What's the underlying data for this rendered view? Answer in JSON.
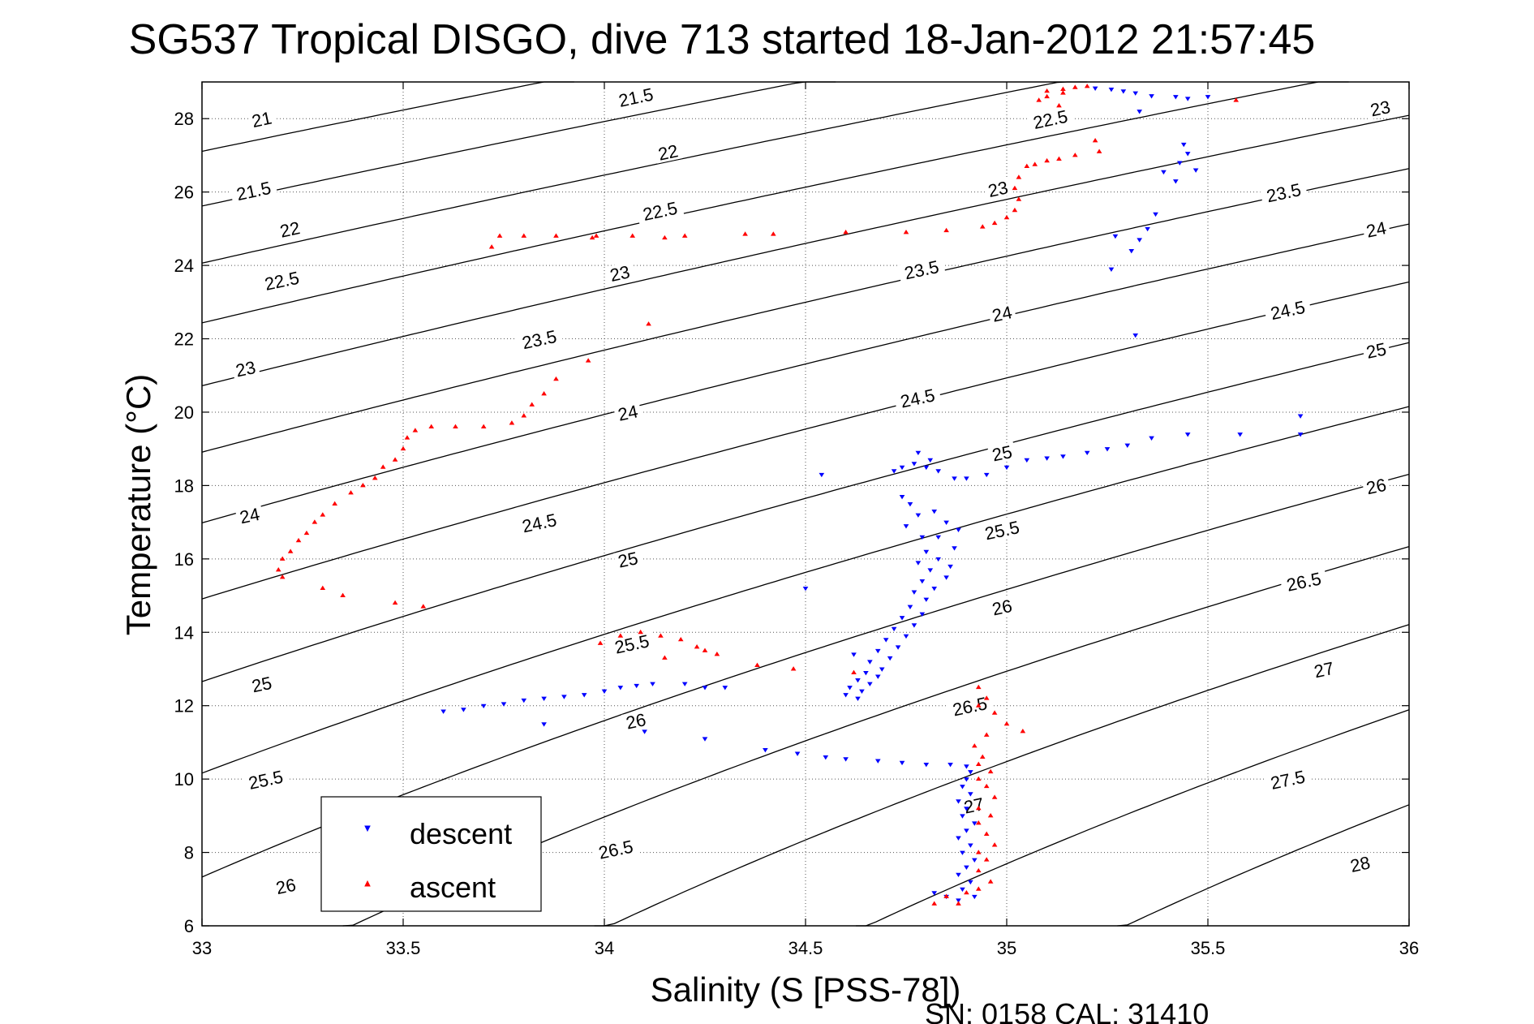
{
  "chart_data": {
    "type": "scatter",
    "title": "SG537 Tropical DISGO, dive 713 started 18-Jan-2012 21:57:45",
    "xlabel": "Salinity (S [PSS-78])",
    "ylabel": "Temperature (°C)",
    "xlim": [
      33,
      36
    ],
    "ylim": [
      6,
      29
    ],
    "xticks": [
      33,
      33.5,
      34,
      34.5,
      35,
      35.5,
      36
    ],
    "xtick_labels": [
      "33",
      "33.5",
      "34",
      "34.5",
      "35",
      "35.5",
      "36"
    ],
    "yticks": [
      6,
      8,
      10,
      12,
      14,
      16,
      18,
      20,
      22,
      24,
      26,
      28
    ],
    "ytick_labels": [
      "6",
      "8",
      "10",
      "12",
      "14",
      "16",
      "18",
      "20",
      "22",
      "24",
      "26",
      "28"
    ],
    "grid": true,
    "legend_position": "bottom-left",
    "footer": "SN: 0158  CAL: 31410",
    "contours": {
      "levels": [
        21,
        21.5,
        22,
        22.5,
        23,
        23.5,
        24,
        24.5,
        25,
        25.5,
        26,
        26.5,
        27,
        27.5,
        28
      ],
      "labels": [
        {
          "text": "21",
          "s": 33.15,
          "t": 27.9
        },
        {
          "text": "21.5",
          "s": 34.08,
          "t": 28.5
        },
        {
          "text": "21.5",
          "s": 33.13,
          "t": 25.95
        },
        {
          "text": "22",
          "s": 34.16,
          "t": 27.0
        },
        {
          "text": "22.5",
          "s": 35.11,
          "t": 27.9
        },
        {
          "text": "22",
          "s": 33.22,
          "t": 24.9
        },
        {
          "text": "22.5",
          "s": 34.14,
          "t": 25.4
        },
        {
          "text": "23",
          "s": 34.98,
          "t": 26.0
        },
        {
          "text": "23",
          "s": 35.93,
          "t": 28.2
        },
        {
          "text": "22.5",
          "s": 33.2,
          "t": 23.5
        },
        {
          "text": "23",
          "s": 34.04,
          "t": 23.7
        },
        {
          "text": "23.5",
          "s": 34.79,
          "t": 23.8
        },
        {
          "text": "23.5",
          "s": 35.69,
          "t": 25.9
        },
        {
          "text": "23",
          "s": 33.11,
          "t": 21.1
        },
        {
          "text": "23.5",
          "s": 33.84,
          "t": 21.9
        },
        {
          "text": "24",
          "s": 34.99,
          "t": 22.6
        },
        {
          "text": "24",
          "s": 35.92,
          "t": 24.9
        },
        {
          "text": "24",
          "s": 34.06,
          "t": 19.9
        },
        {
          "text": "24.5",
          "s": 35.7,
          "t": 22.7
        },
        {
          "text": "25",
          "s": 35.92,
          "t": 21.6
        },
        {
          "text": "24",
          "s": 33.12,
          "t": 17.1
        },
        {
          "text": "24.5",
          "s": 34.78,
          "t": 20.3
        },
        {
          "text": "25",
          "s": 34.99,
          "t": 18.8
        },
        {
          "text": "24.5",
          "s": 33.84,
          "t": 16.9
        },
        {
          "text": "25.5",
          "s": 34.99,
          "t": 16.7
        },
        {
          "text": "26",
          "s": 35.92,
          "t": 17.9
        },
        {
          "text": "25",
          "s": 34.06,
          "t": 15.9
        },
        {
          "text": "26",
          "s": 34.99,
          "t": 14.6
        },
        {
          "text": "26.5",
          "s": 35.74,
          "t": 15.3
        },
        {
          "text": "25.5",
          "s": 34.07,
          "t": 13.6
        },
        {
          "text": "26.5",
          "s": 34.91,
          "t": 11.9
        },
        {
          "text": "27",
          "s": 35.79,
          "t": 12.9
        },
        {
          "text": "25",
          "s": 33.15,
          "t": 12.5
        },
        {
          "text": "26",
          "s": 34.08,
          "t": 11.5
        },
        {
          "text": "27",
          "s": 34.92,
          "t": 9.2
        },
        {
          "text": "27.5",
          "s": 35.7,
          "t": 9.9
        },
        {
          "text": "25.5",
          "s": 33.16,
          "t": 9.9
        },
        {
          "text": "26.5",
          "s": 34.03,
          "t": 8.0
        },
        {
          "text": "28",
          "s": 35.88,
          "t": 7.6
        },
        {
          "text": "26",
          "s": 33.21,
          "t": 7.0
        }
      ]
    },
    "series": [
      {
        "name": "descent",
        "color": "#0000ff",
        "marker": "triangle-down",
        "points": [
          [
            35.22,
            28.83
          ],
          [
            35.26,
            28.8
          ],
          [
            35.29,
            28.75
          ],
          [
            35.32,
            28.7
          ],
          [
            35.36,
            28.62
          ],
          [
            35.42,
            28.6
          ],
          [
            35.45,
            28.55
          ],
          [
            35.5,
            28.6
          ],
          [
            35.33,
            28.2
          ],
          [
            35.44,
            27.3
          ],
          [
            35.45,
            27.05
          ],
          [
            35.43,
            26.8
          ],
          [
            35.47,
            26.6
          ],
          [
            35.39,
            26.55
          ],
          [
            35.42,
            26.3
          ],
          [
            35.37,
            25.4
          ],
          [
            35.35,
            25.0
          ],
          [
            35.33,
            24.7
          ],
          [
            35.27,
            24.8
          ],
          [
            35.31,
            24.4
          ],
          [
            35.26,
            23.9
          ],
          [
            35.32,
            22.1
          ],
          [
            35.73,
            19.9
          ],
          [
            35.73,
            19.4
          ],
          [
            35.58,
            19.4
          ],
          [
            35.45,
            19.4
          ],
          [
            35.36,
            19.3
          ],
          [
            35.3,
            19.1
          ],
          [
            35.25,
            19.0
          ],
          [
            35.2,
            18.9
          ],
          [
            35.14,
            18.8
          ],
          [
            35.1,
            18.75
          ],
          [
            35.05,
            18.7
          ],
          [
            35.0,
            18.5
          ],
          [
            34.95,
            18.3
          ],
          [
            34.9,
            18.2
          ],
          [
            34.87,
            18.2
          ],
          [
            34.83,
            18.4
          ],
          [
            34.8,
            18.5
          ],
          [
            34.77,
            18.6
          ],
          [
            34.74,
            18.5
          ],
          [
            34.72,
            18.4
          ],
          [
            34.78,
            18.9
          ],
          [
            34.81,
            18.7
          ],
          [
            34.54,
            18.3
          ],
          [
            34.74,
            17.7
          ],
          [
            34.76,
            17.5
          ],
          [
            34.78,
            17.2
          ],
          [
            34.82,
            17.3
          ],
          [
            34.85,
            17.0
          ],
          [
            34.88,
            16.8
          ],
          [
            34.75,
            16.9
          ],
          [
            34.79,
            16.6
          ],
          [
            34.83,
            16.6
          ],
          [
            34.87,
            16.3
          ],
          [
            34.8,
            16.2
          ],
          [
            34.83,
            16.0
          ],
          [
            34.86,
            15.8
          ],
          [
            34.78,
            15.9
          ],
          [
            34.81,
            15.7
          ],
          [
            34.85,
            15.5
          ],
          [
            34.79,
            15.4
          ],
          [
            34.82,
            15.2
          ],
          [
            34.77,
            15.1
          ],
          [
            34.8,
            14.9
          ],
          [
            34.76,
            14.7
          ],
          [
            34.79,
            14.5
          ],
          [
            34.74,
            14.4
          ],
          [
            34.77,
            14.2
          ],
          [
            34.72,
            14.1
          ],
          [
            34.75,
            13.9
          ],
          [
            34.7,
            13.8
          ],
          [
            34.73,
            13.6
          ],
          [
            34.68,
            13.5
          ],
          [
            34.71,
            13.3
          ],
          [
            34.66,
            13.2
          ],
          [
            34.69,
            13.0
          ],
          [
            34.65,
            12.9
          ],
          [
            34.68,
            12.8
          ],
          [
            34.63,
            12.7
          ],
          [
            34.66,
            12.6
          ],
          [
            34.61,
            12.5
          ],
          [
            34.64,
            12.4
          ],
          [
            34.6,
            12.3
          ],
          [
            34.63,
            12.2
          ],
          [
            34.5,
            15.2
          ],
          [
            34.62,
            13.4
          ],
          [
            34.12,
            12.6
          ],
          [
            34.08,
            12.55
          ],
          [
            34.04,
            12.5
          ],
          [
            34.0,
            12.4
          ],
          [
            33.95,
            12.3
          ],
          [
            33.9,
            12.25
          ],
          [
            33.85,
            12.2
          ],
          [
            33.8,
            12.15
          ],
          [
            33.75,
            12.05
          ],
          [
            33.7,
            12.0
          ],
          [
            33.65,
            11.9
          ],
          [
            33.6,
            11.85
          ],
          [
            34.2,
            12.6
          ],
          [
            34.25,
            12.5
          ],
          [
            34.3,
            12.5
          ],
          [
            34.1,
            11.3
          ],
          [
            33.85,
            11.5
          ],
          [
            34.25,
            11.1
          ],
          [
            34.4,
            10.8
          ],
          [
            34.48,
            10.7
          ],
          [
            34.55,
            10.6
          ],
          [
            34.6,
            10.55
          ],
          [
            34.68,
            10.5
          ],
          [
            34.74,
            10.45
          ],
          [
            34.8,
            10.4
          ],
          [
            34.86,
            10.4
          ],
          [
            34.9,
            10.35
          ],
          [
            34.91,
            10.2
          ],
          [
            34.9,
            10.0
          ],
          [
            34.89,
            9.8
          ],
          [
            34.91,
            9.6
          ],
          [
            34.88,
            9.4
          ],
          [
            34.9,
            9.2
          ],
          [
            34.89,
            9.0
          ],
          [
            34.92,
            8.8
          ],
          [
            34.9,
            8.6
          ],
          [
            34.88,
            8.4
          ],
          [
            34.91,
            8.2
          ],
          [
            34.89,
            8.0
          ],
          [
            34.92,
            7.8
          ],
          [
            34.9,
            7.6
          ],
          [
            34.88,
            7.4
          ],
          [
            34.91,
            7.2
          ],
          [
            34.89,
            7.0
          ],
          [
            34.92,
            6.8
          ],
          [
            34.88,
            6.7
          ],
          [
            34.85,
            6.8
          ],
          [
            34.82,
            6.9
          ]
        ]
      },
      {
        "name": "ascent",
        "color": "#ff0000",
        "marker": "triangle-up",
        "points": [
          [
            35.1,
            28.75
          ],
          [
            35.14,
            28.8
          ],
          [
            35.17,
            28.85
          ],
          [
            35.2,
            28.88
          ],
          [
            35.14,
            28.7
          ],
          [
            35.1,
            28.6
          ],
          [
            35.08,
            28.5
          ],
          [
            35.13,
            28.35
          ],
          [
            35.57,
            28.5
          ],
          [
            35.22,
            27.4
          ],
          [
            35.23,
            27.1
          ],
          [
            35.17,
            27.0
          ],
          [
            35.13,
            26.9
          ],
          [
            35.1,
            26.85
          ],
          [
            35.07,
            26.75
          ],
          [
            35.05,
            26.7
          ],
          [
            35.03,
            26.4
          ],
          [
            35.02,
            26.1
          ],
          [
            35.03,
            25.8
          ],
          [
            35.02,
            25.5
          ],
          [
            35.0,
            25.3
          ],
          [
            34.97,
            25.15
          ],
          [
            34.94,
            25.05
          ],
          [
            34.85,
            24.95
          ],
          [
            34.75,
            24.9
          ],
          [
            34.6,
            24.9
          ],
          [
            34.42,
            24.85
          ],
          [
            34.35,
            24.85
          ],
          [
            34.2,
            24.8
          ],
          [
            34.15,
            24.75
          ],
          [
            34.07,
            24.8
          ],
          [
            33.97,
            24.75
          ],
          [
            33.88,
            24.8
          ],
          [
            33.8,
            24.8
          ],
          [
            33.74,
            24.8
          ],
          [
            33.72,
            24.5
          ],
          [
            33.98,
            24.8
          ],
          [
            34.11,
            22.4
          ],
          [
            33.96,
            21.4
          ],
          [
            33.88,
            20.9
          ],
          [
            33.85,
            20.5
          ],
          [
            33.82,
            20.2
          ],
          [
            33.8,
            19.9
          ],
          [
            33.77,
            19.7
          ],
          [
            33.7,
            19.6
          ],
          [
            33.63,
            19.6
          ],
          [
            33.57,
            19.6
          ],
          [
            33.53,
            19.5
          ],
          [
            33.51,
            19.3
          ],
          [
            33.5,
            19.0
          ],
          [
            33.48,
            18.7
          ],
          [
            33.45,
            18.5
          ],
          [
            33.43,
            18.2
          ],
          [
            33.4,
            18.0
          ],
          [
            33.37,
            17.8
          ],
          [
            33.33,
            17.5
          ],
          [
            33.3,
            17.2
          ],
          [
            33.28,
            17.0
          ],
          [
            33.26,
            16.7
          ],
          [
            33.24,
            16.5
          ],
          [
            33.22,
            16.2
          ],
          [
            33.2,
            16.0
          ],
          [
            33.19,
            15.7
          ],
          [
            33.2,
            15.5
          ],
          [
            33.3,
            15.2
          ],
          [
            33.35,
            15.0
          ],
          [
            33.48,
            14.8
          ],
          [
            33.55,
            14.7
          ],
          [
            33.99,
            13.7
          ],
          [
            34.04,
            13.9
          ],
          [
            34.09,
            14.0
          ],
          [
            34.14,
            13.9
          ],
          [
            34.19,
            13.8
          ],
          [
            34.23,
            13.6
          ],
          [
            34.25,
            13.5
          ],
          [
            34.28,
            13.4
          ],
          [
            34.15,
            13.3
          ],
          [
            34.38,
            13.1
          ],
          [
            34.47,
            13.0
          ],
          [
            34.62,
            12.9
          ],
          [
            34.93,
            12.5
          ],
          [
            34.95,
            12.2
          ],
          [
            34.93,
            12.0
          ],
          [
            34.97,
            11.8
          ],
          [
            35.0,
            11.5
          ],
          [
            35.04,
            11.3
          ],
          [
            34.95,
            11.2
          ],
          [
            34.92,
            10.9
          ],
          [
            34.94,
            10.6
          ],
          [
            34.93,
            10.4
          ],
          [
            34.96,
            10.2
          ],
          [
            34.93,
            10.0
          ],
          [
            34.95,
            9.8
          ],
          [
            34.97,
            9.5
          ],
          [
            34.93,
            9.2
          ],
          [
            34.96,
            9.0
          ],
          [
            34.93,
            8.8
          ],
          [
            34.95,
            8.5
          ],
          [
            34.97,
            8.2
          ],
          [
            34.93,
            8.0
          ],
          [
            34.95,
            7.8
          ],
          [
            34.93,
            7.5
          ],
          [
            34.96,
            7.2
          ],
          [
            34.93,
            7.0
          ],
          [
            34.9,
            6.9
          ],
          [
            34.85,
            6.8
          ],
          [
            34.82,
            6.6
          ],
          [
            34.88,
            6.6
          ]
        ]
      }
    ]
  }
}
